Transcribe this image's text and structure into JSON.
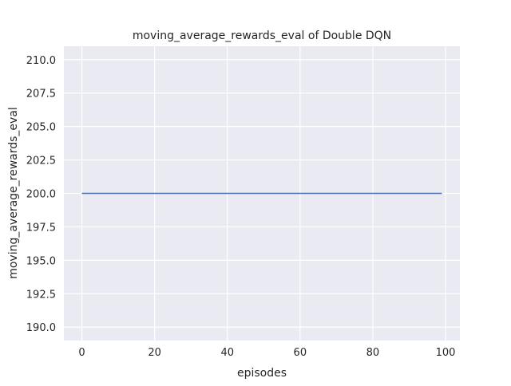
{
  "chart_data": {
    "type": "line",
    "title": "moving_average_rewards_eval of Double DQN",
    "xlabel": "episodes",
    "ylabel": "moving_average_rewards_eval",
    "xlim": [
      -4.95,
      103.95
    ],
    "ylim": [
      189,
      211
    ],
    "xticks": [
      0,
      20,
      40,
      60,
      80,
      100
    ],
    "yticks": [
      190.0,
      192.5,
      195.0,
      197.5,
      200.0,
      202.5,
      205.0,
      207.5,
      210.0
    ],
    "grid": true,
    "series": [
      {
        "x": [
          0,
          99
        ],
        "y": [
          200,
          200
        ],
        "color": "#4c72b0"
      }
    ],
    "background": "#eaeaf2"
  }
}
